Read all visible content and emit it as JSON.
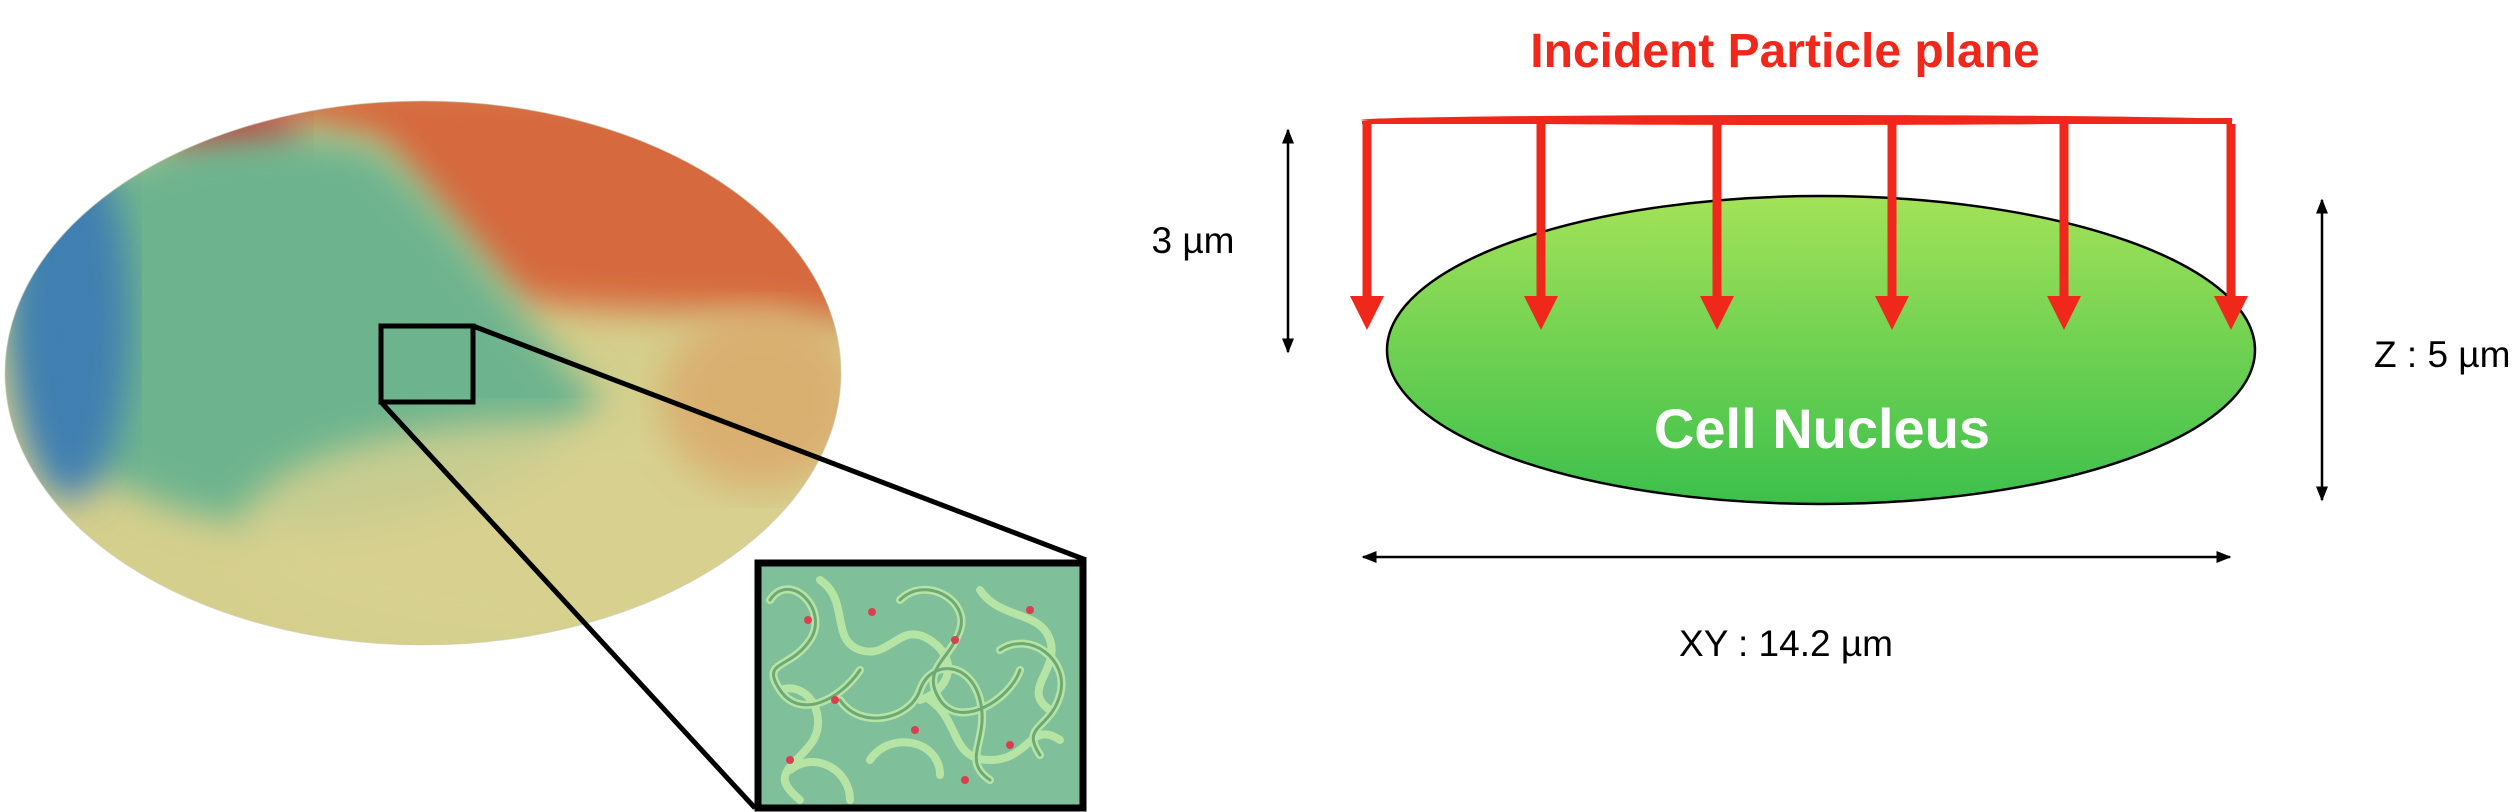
{
  "incident_plane_label": "Incident Particle plane",
  "nucleus_label": "Cell Nucleus",
  "depth_label": "3 µm",
  "height_label": "Z : 5 µm",
  "width_label": "XY : 14.2 µm",
  "colors": {
    "arrow_red": "#f0271b",
    "nucleus_green_top": "#9ddf55",
    "nucleus_green_bottom": "#3fc24a",
    "chromatin_green": "#6fb890",
    "chromatin_orange": "#d46a3c",
    "chromatin_yellow": "#d7cf8a",
    "chromatin_blue": "#3d7fb0"
  }
}
